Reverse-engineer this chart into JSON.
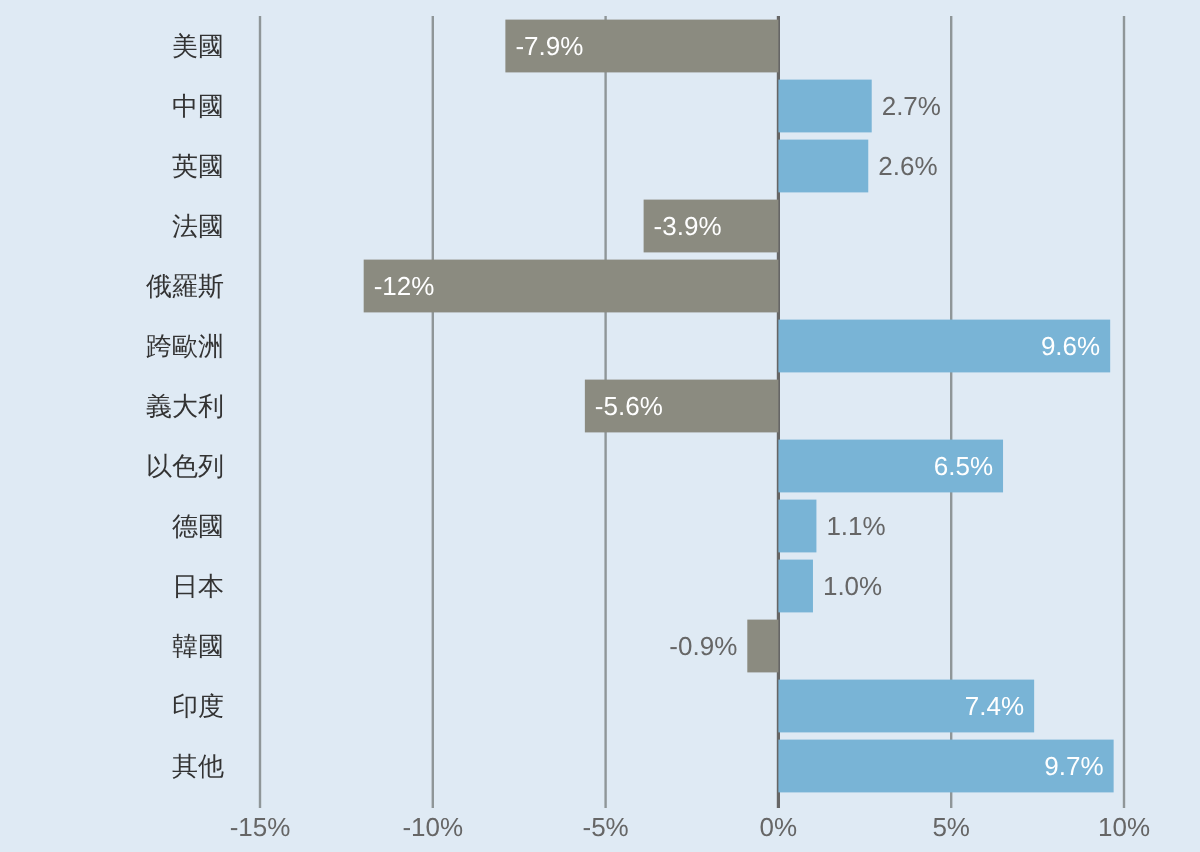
{
  "chart_data": {
    "type": "bar",
    "orientation": "horizontal",
    "categories": [
      "美國",
      "中國",
      "英國",
      "法國",
      "俄羅斯",
      "跨歐洲",
      "義大利",
      "以色列",
      "德國",
      "日本",
      "韓國",
      "印度",
      "其他"
    ],
    "values": [
      -7.9,
      2.7,
      2.6,
      -3.9,
      -12,
      9.6,
      -5.6,
      6.5,
      1.1,
      1.0,
      -0.9,
      7.4,
      9.7
    ],
    "colors": [
      "#8b8b80",
      "#79b4d6",
      "#79b4d6",
      "#8b8b80",
      "#8b8b80",
      "#79b4d6",
      "#8b8b80",
      "#79b4d6",
      "#79b4d6",
      "#79b4d6",
      "#8b8b80",
      "#79b4d6",
      "#79b4d6"
    ],
    "value_labels": [
      "-7.9%",
      "2.7%",
      "2.6%",
      "-3.9%",
      "-12%",
      "9.6%",
      "-5.6%",
      "6.5%",
      "1.1%",
      "1.0%",
      "-0.9%",
      "7.4%",
      "9.7%"
    ],
    "xlim": [
      -15,
      10
    ],
    "xticks": [
      {
        "value": -15,
        "label": "-15%"
      },
      {
        "value": -10,
        "label": "-10%"
      },
      {
        "value": -5,
        "label": "-5%"
      },
      {
        "value": 0,
        "label": "0%"
      },
      {
        "value": 5,
        "label": "5%"
      },
      {
        "value": 10,
        "label": "10%"
      }
    ],
    "grid": "x"
  }
}
